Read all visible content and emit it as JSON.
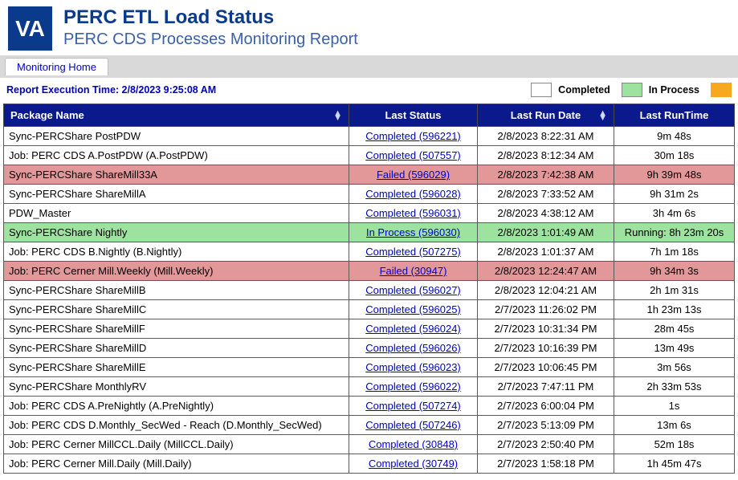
{
  "logo_text": "VA",
  "title": "PERC ETL Load Status",
  "subtitle": "PERC CDS Processes Monitoring Report",
  "nav": {
    "home_label": "Monitoring Home"
  },
  "exec_time_label": "Report Execution Time: 2/8/2023 9:25:08 AM",
  "legend": {
    "completed_label": "Completed",
    "inprocess_label": "In Process",
    "completed_color": "#ffffff",
    "inprocess_color": "#9de39f",
    "warn_color": "#f7a81e"
  },
  "colors": {
    "header_bg": "#0a1a8c",
    "failed_row": "#e29799",
    "inprocess_row": "#9de39f",
    "link": "#0000cc"
  },
  "columns": {
    "package": "Package Name",
    "status": "Last Status",
    "date": "Last Run Date",
    "runtime": "Last RunTime"
  },
  "rows": [
    {
      "pkg": "Sync-PERCShare PostPDW",
      "status": "Completed (596221)",
      "date": "2/8/2023 8:22:31 AM",
      "runtime": "9m 48s",
      "state": "normal"
    },
    {
      "pkg": "Job: PERC CDS A.PostPDW (A.PostPDW)",
      "status": "Completed (507557)",
      "date": "2/8/2023 8:12:34 AM",
      "runtime": "30m 18s",
      "state": "normal"
    },
    {
      "pkg": "Sync-PERCShare ShareMill33A",
      "status": "Failed (596029)",
      "date": "2/8/2023 7:42:38 AM",
      "runtime": "9h 39m 48s",
      "state": "failed"
    },
    {
      "pkg": "Sync-PERCShare ShareMillA",
      "status": "Completed (596028)",
      "date": "2/8/2023 7:33:52 AM",
      "runtime": "9h 31m 2s",
      "state": "normal"
    },
    {
      "pkg": "PDW_Master",
      "status": "Completed (596031)",
      "date": "2/8/2023 4:38:12 AM",
      "runtime": "3h 4m 6s",
      "state": "normal"
    },
    {
      "pkg": "Sync-PERCShare Nightly",
      "status": "In Process (596030)",
      "date": "2/8/2023 1:01:49 AM",
      "runtime": "Running: 8h 23m 20s",
      "state": "inprocess"
    },
    {
      "pkg": "Job: PERC CDS B.Nightly (B.Nightly)",
      "status": "Completed (507275)",
      "date": "2/8/2023 1:01:37 AM",
      "runtime": "7h 1m 18s",
      "state": "normal"
    },
    {
      "pkg": "Job: PERC Cerner Mill.Weekly (Mill.Weekly)",
      "status": "Failed (30947)",
      "date": "2/8/2023 12:24:47 AM",
      "runtime": "9h 34m 3s",
      "state": "failed"
    },
    {
      "pkg": "Sync-PERCShare ShareMillB",
      "status": "Completed (596027)",
      "date": "2/8/2023 12:04:21 AM",
      "runtime": "2h 1m 31s",
      "state": "normal"
    },
    {
      "pkg": "Sync-PERCShare ShareMillC",
      "status": "Completed (596025)",
      "date": "2/7/2023 11:26:02 PM",
      "runtime": "1h 23m 13s",
      "state": "normal"
    },
    {
      "pkg": "Sync-PERCShare ShareMillF",
      "status": "Completed (596024)",
      "date": "2/7/2023 10:31:34 PM",
      "runtime": "28m 45s",
      "state": "normal"
    },
    {
      "pkg": "Sync-PERCShare ShareMillD",
      "status": "Completed (596026)",
      "date": "2/7/2023 10:16:39 PM",
      "runtime": "13m 49s",
      "state": "normal"
    },
    {
      "pkg": "Sync-PERCShare ShareMillE",
      "status": "Completed (596023)",
      "date": "2/7/2023 10:06:45 PM",
      "runtime": "3m 56s",
      "state": "normal"
    },
    {
      "pkg": "Sync-PERCShare MonthlyRV",
      "status": "Completed (596022)",
      "date": "2/7/2023 7:47:11 PM",
      "runtime": "2h 33m 53s",
      "state": "normal"
    },
    {
      "pkg": "Job: PERC CDS A.PreNightly (A.PreNightly)",
      "status": "Completed (507274)",
      "date": "2/7/2023 6:00:04 PM",
      "runtime": "1s",
      "state": "normal"
    },
    {
      "pkg": "Job: PERC CDS D.Monthly_SecWed - Reach (D.Monthly_SecWed)",
      "status": "Completed (507246)",
      "date": "2/7/2023 5:13:09 PM",
      "runtime": "13m 6s",
      "state": "normal"
    },
    {
      "pkg": "Job: PERC Cerner MillCCL.Daily (MillCCL.Daily)",
      "status": "Completed (30848)",
      "date": "2/7/2023 2:50:40 PM",
      "runtime": "52m 18s",
      "state": "normal"
    },
    {
      "pkg": "Job: PERC Cerner Mill.Daily (Mill.Daily)",
      "status": "Completed (30749)",
      "date": "2/7/2023 1:58:18 PM",
      "runtime": "1h 45m 47s",
      "state": "normal"
    }
  ]
}
